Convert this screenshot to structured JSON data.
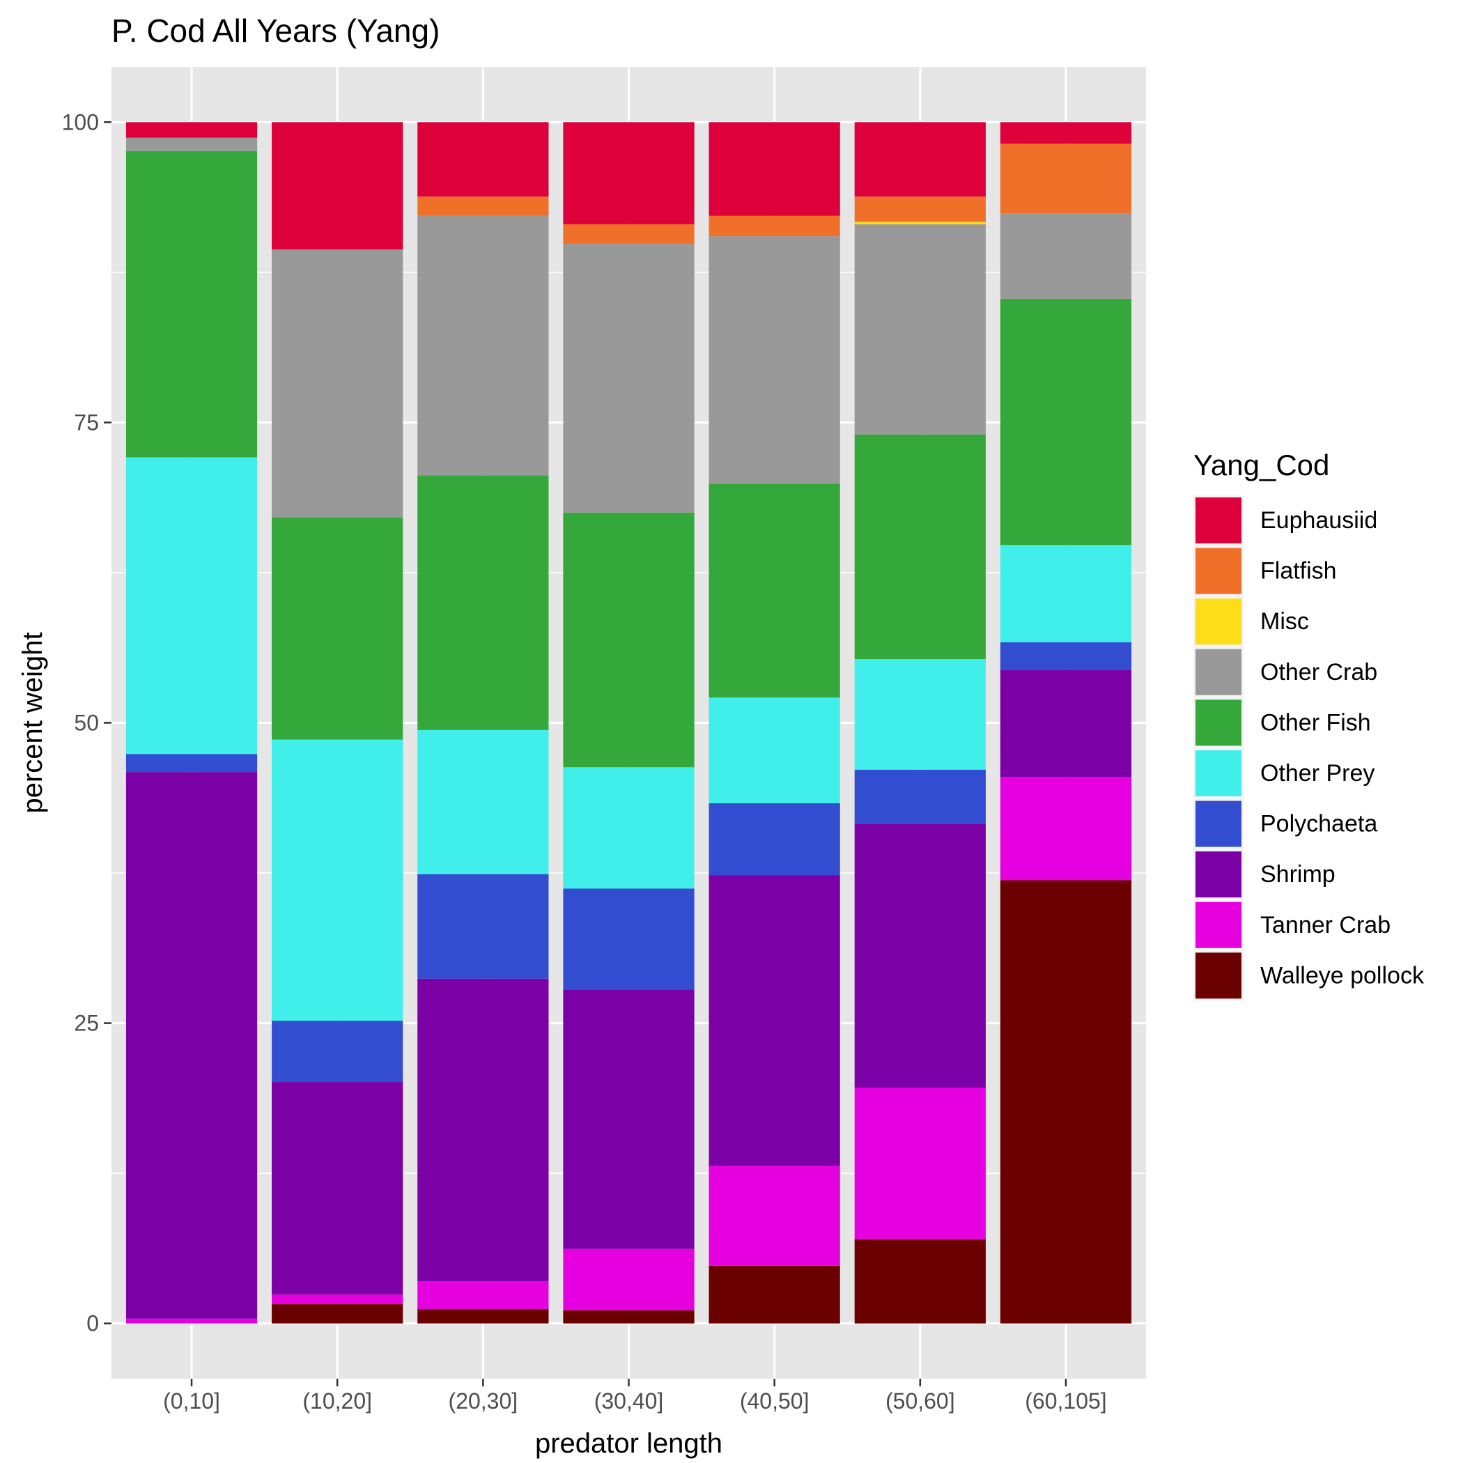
{
  "chart_data": {
    "type": "bar",
    "stacked": true,
    "title": "P. Cod All Years (Yang)",
    "xlabel": "predator length",
    "ylabel": "percent weight",
    "ylim": [
      -4.6,
      104.6
    ],
    "yticks": [
      0,
      25,
      50,
      75,
      100
    ],
    "grid": true,
    "legend_title": "Yang_Cod",
    "legend_position": "right",
    "categories": [
      "(0,10]",
      "(10,20]",
      "(20,30]",
      "(30,40]",
      "(40,50]",
      "(50,60]",
      "(60,105]"
    ],
    "series": [
      {
        "name": "Walleye pollock",
        "color": "#6b0000",
        "values": [
          0,
          1.6,
          1.2,
          1.1,
          4.8,
          7.0,
          36.9
        ]
      },
      {
        "name": "Tanner Crab",
        "color": "#e600e0",
        "values": [
          0.4,
          0.8,
          2.3,
          5.1,
          8.3,
          12.6,
          8.6
        ]
      },
      {
        "name": "Shrimp",
        "color": "#7b00a6",
        "values": [
          45.5,
          17.7,
          25.2,
          21.6,
          24.2,
          22.0,
          8.9
        ]
      },
      {
        "name": "Polychaeta",
        "color": "#334dd1",
        "values": [
          1.5,
          5.1,
          8.7,
          8.4,
          6.0,
          4.5,
          2.3
        ]
      },
      {
        "name": "Other Prey",
        "color": "#40efea",
        "values": [
          24.7,
          23.4,
          12.0,
          10.1,
          8.8,
          9.2,
          8.1
        ]
      },
      {
        "name": "Other Fish",
        "color": "#35a83c",
        "values": [
          25.5,
          18.5,
          21.2,
          21.2,
          17.8,
          18.7,
          20.5
        ]
      },
      {
        "name": "Other Crab",
        "color": "#999999",
        "values": [
          1.1,
          22.3,
          21.6,
          22.4,
          20.6,
          17.5,
          7.1
        ]
      },
      {
        "name": "Misc",
        "color": "#fcdd18",
        "values": [
          0,
          0,
          0,
          0,
          0,
          0.2,
          0
        ]
      },
      {
        "name": "Flatfish",
        "color": "#f07029",
        "values": [
          0,
          0,
          1.6,
          1.6,
          1.7,
          2.1,
          5.8
        ]
      },
      {
        "name": "Euphausiid",
        "color": "#de003a",
        "values": [
          1.3,
          10.6,
          6.2,
          8.5,
          7.8,
          6.2,
          1.8
        ]
      }
    ],
    "legend_order": [
      "Euphausiid",
      "Flatfish",
      "Misc",
      "Other Crab",
      "Other Fish",
      "Other Prey",
      "Polychaeta",
      "Shrimp",
      "Tanner Crab",
      "Walleye pollock"
    ]
  },
  "colors": {
    "panel_background": "#e6e6e6",
    "gridline": "#ffffff"
  }
}
